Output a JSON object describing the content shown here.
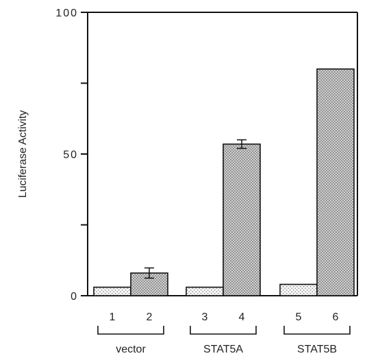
{
  "chart_data": {
    "type": "bar",
    "title": "",
    "xlabel": "",
    "ylabel": "Luciferase Activity",
    "ylim": [
      0,
      100
    ],
    "y_ticks": [
      0,
      25,
      50,
      75,
      100
    ],
    "y_tick_labels": [
      "0",
      "",
      "50",
      "",
      "100"
    ],
    "grid": false,
    "legend": "none",
    "categories": [
      "1",
      "2",
      "3",
      "4",
      "5",
      "6"
    ],
    "values": [
      3,
      8,
      3,
      53.5,
      4,
      80
    ],
    "error": [
      null,
      1.8,
      null,
      1.5,
      null,
      null
    ],
    "bar_pattern": [
      "light",
      "dense",
      "light",
      "dense",
      "light",
      "dense"
    ],
    "groups": [
      {
        "label": "vector",
        "categories": [
          "1",
          "2"
        ]
      },
      {
        "label": "STAT5A",
        "categories": [
          "3",
          "4"
        ]
      },
      {
        "label": "STAT5B",
        "categories": [
          "5",
          "6"
        ]
      }
    ]
  }
}
